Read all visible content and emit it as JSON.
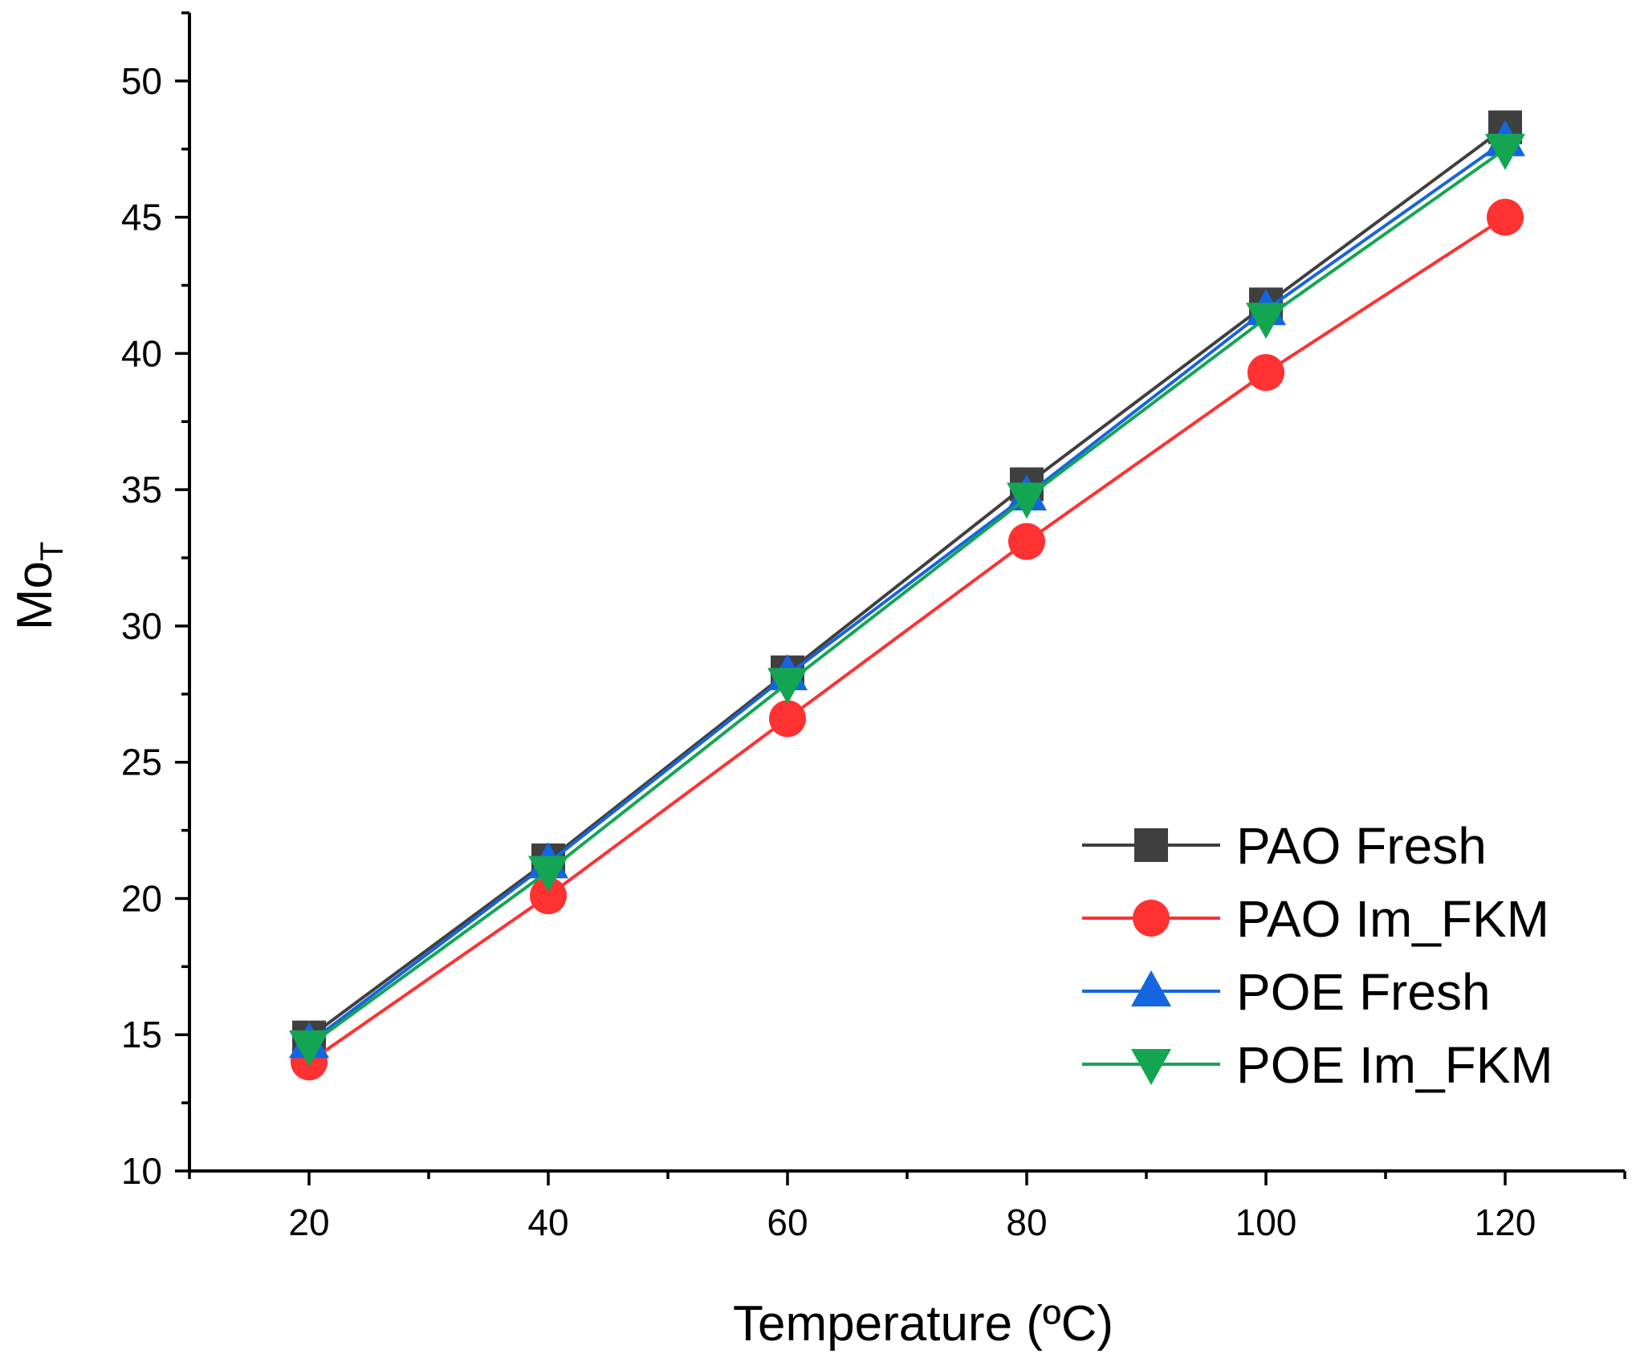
{
  "chart_data": {
    "type": "line",
    "xlabel": "Temperature (ºC)",
    "ylabel_main": "Mo",
    "ylabel_sub": "T",
    "xlim": [
      10,
      130
    ],
    "ylim": [
      10,
      52.5
    ],
    "x_ticks": [
      20,
      40,
      60,
      80,
      100,
      120
    ],
    "x_minor_ticks": [
      10,
      30,
      50,
      70,
      90,
      110,
      130
    ],
    "y_ticks": [
      10,
      15,
      20,
      25,
      30,
      35,
      40,
      45,
      50
    ],
    "y_minor_ticks": [
      12.5,
      17.5,
      22.5,
      27.5,
      32.5,
      37.5,
      42.5,
      47.5,
      52.5
    ],
    "x_tick_labels": [
      "20",
      "40",
      "60",
      "80",
      "100",
      "120"
    ],
    "y_tick_labels": [
      "10",
      "15",
      "20",
      "25",
      "30",
      "35",
      "40",
      "45",
      "50"
    ],
    "grid": false,
    "legend_position": "bottom-right",
    "x": [
      20,
      40,
      60,
      80,
      100,
      120
    ],
    "series": [
      {
        "name": "PAO Fresh",
        "marker": "square",
        "color": "#3f3f3f",
        "values": [
          14.9,
          21.4,
          28.3,
          35.2,
          41.8,
          48.3
        ]
      },
      {
        "name": "PAO Im_FKM",
        "marker": "circle",
        "color": "#ff3131",
        "values": [
          14.0,
          20.1,
          26.6,
          33.1,
          39.3,
          45.0
        ]
      },
      {
        "name": "POE Fresh",
        "marker": "triangle-up",
        "color": "#1565e0",
        "values": [
          14.7,
          21.3,
          28.2,
          34.8,
          41.6,
          47.8
        ]
      },
      {
        "name": "POE Im_FKM",
        "marker": "triangle-down",
        "color": "#14a552",
        "values": [
          14.6,
          21.0,
          27.9,
          34.7,
          41.3,
          47.5
        ]
      }
    ]
  }
}
